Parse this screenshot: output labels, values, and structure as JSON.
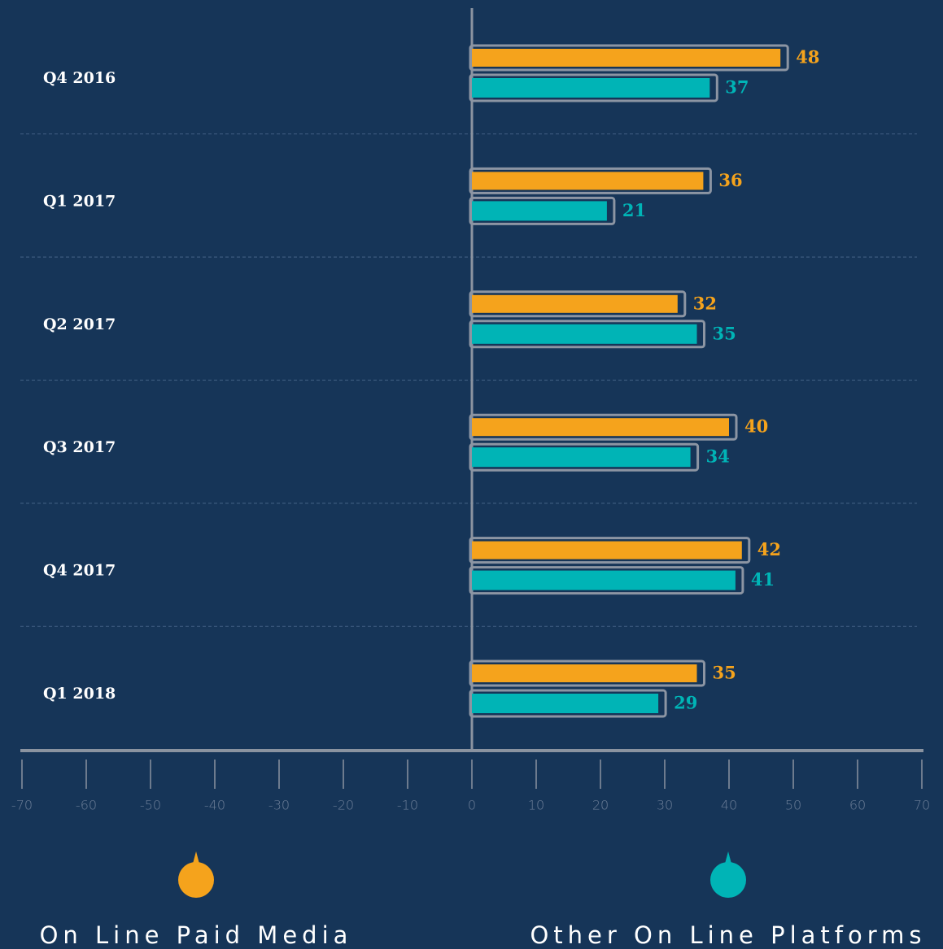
{
  "chart_data": {
    "type": "bar",
    "orientation": "horizontal",
    "categories": [
      "Q4 2016",
      "Q1 2017",
      "Q2 2017",
      "Q3 2017",
      "Q4 2017",
      "Q1 2018"
    ],
    "series": [
      {
        "name": "On Line Paid Media",
        "color": "#f5a31c",
        "values": [
          48,
          36,
          32,
          40,
          42,
          35
        ]
      },
      {
        "name": "Other On Line Platforms",
        "color": "#00b4b6",
        "values": [
          37,
          21,
          35,
          34,
          41,
          29
        ]
      }
    ],
    "xlim": [
      -70,
      70
    ],
    "xticks": [
      -70,
      -60,
      -50,
      -40,
      -30,
      -20,
      -10,
      0,
      10,
      20,
      30,
      40,
      50,
      60,
      70
    ],
    "grid": true
  }
}
